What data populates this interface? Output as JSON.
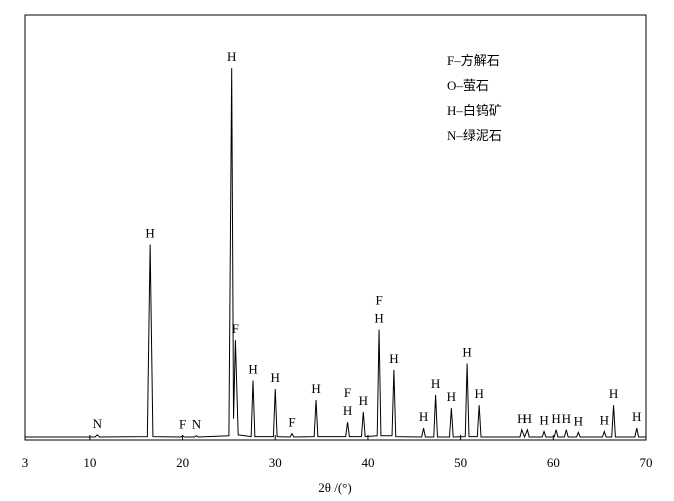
{
  "chart_data": {
    "type": "line",
    "xlabel": "2θ /(°)",
    "x": [
      3,
      10.55,
      10.8,
      11.05,
      16.2,
      16.5,
      16.8,
      19.8,
      20.0,
      20.2,
      21.3,
      21.5,
      21.7,
      25.0,
      25.3,
      25.5,
      25.7,
      26.0,
      27.4,
      27.6,
      27.8,
      29.8,
      30.0,
      30.2,
      31.6,
      31.8,
      32.0,
      34.2,
      34.4,
      34.6,
      37.6,
      37.8,
      38.0,
      39.3,
      39.5,
      39.7,
      41.0,
      41.2,
      41.4,
      42.6,
      42.8,
      43.0,
      45.8,
      46.0,
      46.2,
      47.1,
      47.3,
      47.5,
      48.8,
      49.0,
      49.2,
      50.5,
      50.7,
      50.9,
      51.8,
      52.0,
      52.2,
      56.4,
      56.6,
      56.9,
      57.2,
      57.4,
      58.8,
      59.0,
      59.2,
      60.1,
      60.3,
      60.5,
      61.2,
      61.4,
      61.6,
      62.5,
      62.7,
      62.9,
      65.3,
      65.5,
      65.7,
      66.3,
      66.5,
      66.7,
      68.8,
      69.0,
      69.2,
      70
    ],
    "series": [
      {
        "color": "#000000",
        "values": [
          0.7,
          0.7,
          1.2,
          0.7,
          0.8,
          46,
          0.8,
          0.7,
          1.0,
          0.7,
          0.7,
          1.0,
          0.7,
          1.0,
          87.5,
          5,
          23.5,
          1.2,
          0.8,
          14,
          0.8,
          0.8,
          12,
          0.8,
          0.7,
          1.5,
          0.7,
          0.8,
          9.4,
          0.8,
          0.8,
          4.2,
          0.8,
          0.8,
          6.6,
          0.8,
          1.0,
          26,
          1.0,
          1.0,
          16.5,
          0.8,
          0.7,
          2.8,
          0.7,
          0.7,
          10.6,
          0.7,
          0.7,
          7.5,
          0.7,
          0.8,
          18,
          0.8,
          0.8,
          8.2,
          0.7,
          0.7,
          2.4,
          0.7,
          2.4,
          0.7,
          0.7,
          2,
          0.7,
          0.7,
          2.4,
          0.7,
          0.7,
          2.4,
          0.7,
          0.7,
          1.8,
          0.7,
          0.7,
          2,
          0.7,
          0.7,
          8.2,
          0.7,
          0.7,
          2.8,
          0.7,
          0.7
        ]
      }
    ],
    "xlim": [
      3,
      70
    ],
    "xticks": [
      3,
      10,
      20,
      30,
      40,
      50,
      60,
      70
    ],
    "ylim": [
      0,
      100
    ],
    "legend_notes": [
      "F–方解石",
      "O–萤石",
      "H–白钨矿",
      "N–绿泥石"
    ],
    "annotations": [
      {
        "text": "N",
        "x": 10.8
      },
      {
        "text": "H",
        "x": 16.5
      },
      {
        "text": "F",
        "x": 20.0
      },
      {
        "text": "N",
        "x": 21.5
      },
      {
        "text": "H",
        "x": 25.3
      },
      {
        "text": "F",
        "x": 25.7
      },
      {
        "text": "H",
        "x": 27.6
      },
      {
        "text": "H",
        "x": 30.0
      },
      {
        "text": "F",
        "x": 31.8
      },
      {
        "text": "H",
        "x": 34.4
      },
      {
        "text": "H",
        "x": 37.8
      },
      {
        "text": "F",
        "x": 37.8
      },
      {
        "text": "H",
        "x": 39.5
      },
      {
        "text": "H",
        "x": 41.2
      },
      {
        "text": "F",
        "x": 41.2
      },
      {
        "text": "H",
        "x": 42.8
      },
      {
        "text": "H",
        "x": 46.0
      },
      {
        "text": "H",
        "x": 47.3
      },
      {
        "text": "H",
        "x": 49.0
      },
      {
        "text": "H",
        "x": 50.7
      },
      {
        "text": "H",
        "x": 52.0
      },
      {
        "text": "H",
        "x": 56.6
      },
      {
        "text": "H",
        "x": 57.2
      },
      {
        "text": "H",
        "x": 59.0
      },
      {
        "text": "H",
        "x": 60.3
      },
      {
        "text": "H",
        "x": 61.4
      },
      {
        "text": "H",
        "x": 62.7
      },
      {
        "text": "H",
        "x": 65.5
      },
      {
        "text": "H",
        "x": 66.5
      },
      {
        "text": "H",
        "x": 69.0
      }
    ]
  }
}
